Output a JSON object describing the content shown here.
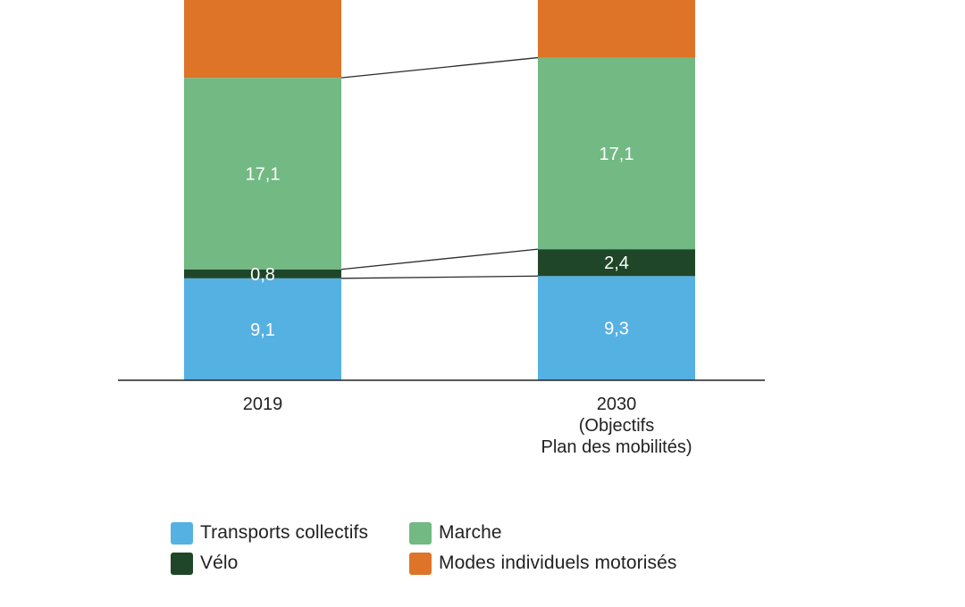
{
  "chart_data": {
    "type": "bar",
    "stacked": true,
    "categories": [
      "2019",
      "2030\n(Objectifs\nPlan des mobilités)"
    ],
    "series": [
      {
        "name": "Transports collectifs",
        "values": [
          9.1,
          9.3
        ],
        "labels": [
          "9,1",
          "9,3"
        ],
        "color": "#56b1e3"
      },
      {
        "name": "Vélo",
        "values": [
          0.8,
          2.4
        ],
        "labels": [
          "0,8",
          "2,4"
        ],
        "color": "#1f4628"
      },
      {
        "name": "Marche",
        "values": [
          17.1,
          17.1
        ],
        "labels": [
          "17,1",
          "17,1"
        ],
        "color": "#72b984"
      },
      {
        "name": "Modes individuels motorisés",
        "values": [
          null,
          null
        ],
        "labels": [
          "",
          ""
        ],
        "color": "#dd7428"
      }
    ],
    "legend_position": "bottom",
    "grid": false,
    "connector_lines": true,
    "title": "",
    "xlabel": "",
    "ylabel": ""
  },
  "legend": {
    "items": [
      {
        "label": "Transports collectifs",
        "color": "#56b1e3"
      },
      {
        "label": "Marche",
        "color": "#72b984"
      },
      {
        "label": "Vélo",
        "color": "#1f4628"
      },
      {
        "label": "Modes individuels motorisés",
        "color": "#dd7428"
      }
    ]
  }
}
